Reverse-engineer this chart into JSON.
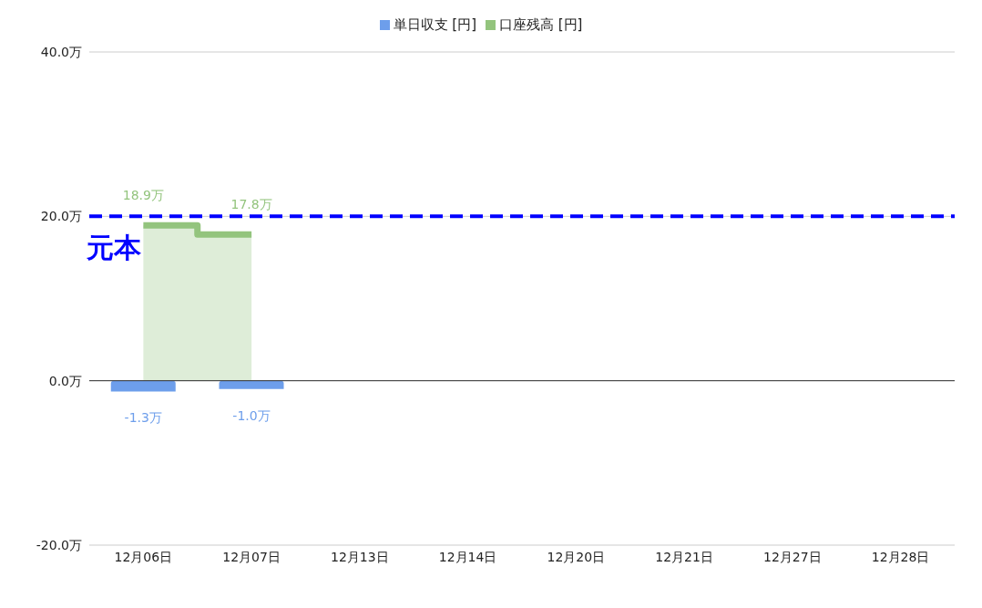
{
  "chart_data": {
    "type": "bar",
    "categories": [
      "12月06日",
      "12月07日",
      "12月13日",
      "12月14日",
      "12月20日",
      "12月21日",
      "12月27日",
      "12月28日"
    ],
    "series": [
      {
        "name": "単日収支 [円]",
        "color": "#6d9eeb",
        "values": [
          -1.3,
          -1.0,
          null,
          null,
          null,
          null,
          null,
          null
        ],
        "value_labels": [
          "-1.3万",
          "-1.0万",
          null,
          null,
          null,
          null,
          null,
          null
        ]
      },
      {
        "name": "口座残高 [円]",
        "type": "area",
        "color": "#93c47d",
        "values": [
          18.9,
          17.8,
          null,
          null,
          null,
          null,
          null,
          null
        ],
        "value_labels": [
          "18.9万",
          "17.8万",
          null,
          null,
          null,
          null,
          null,
          null
        ]
      }
    ],
    "ylim": [
      -20,
      40
    ],
    "yticks": [
      {
        "value": -20,
        "label": "-20.0万"
      },
      {
        "value": 0,
        "label": "0.0万"
      },
      {
        "value": 20,
        "label": "20.0万"
      },
      {
        "value": 40,
        "label": "40.0万"
      }
    ],
    "ref_lines": [
      {
        "axis": "y",
        "value": 20,
        "label": "元本",
        "color": "#0000ff",
        "line_style": "dashed"
      }
    ],
    "grid": "y",
    "legend": "top"
  }
}
